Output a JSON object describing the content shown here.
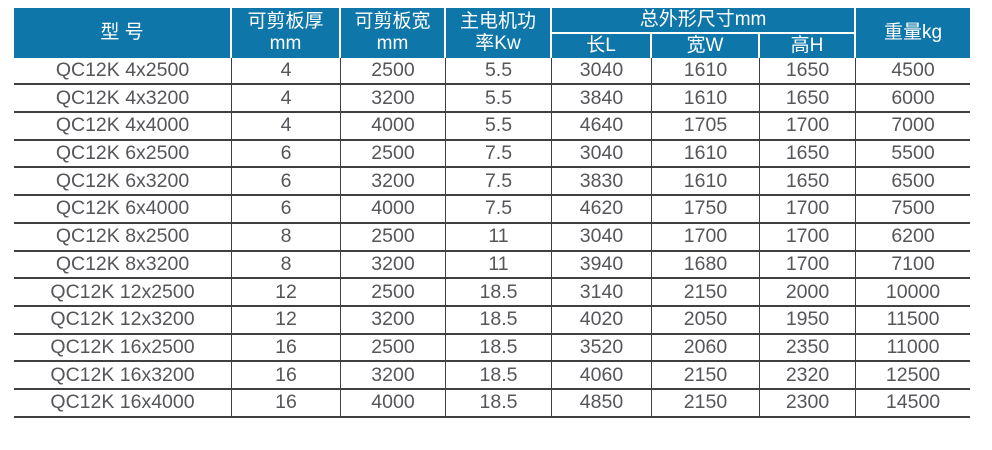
{
  "table": {
    "title_semantic": "QC12K shearing machine specification table",
    "header": {
      "model": "型 号",
      "thickness_l1": "可剪板厚",
      "thickness_l2": "mm",
      "shear_width_l1": "可剪板宽",
      "shear_width_l2": "mm",
      "power_l1": "主电机功",
      "power_l2": "率Kw",
      "dimensions_group": "总外形尺寸mm",
      "length": "长L",
      "width": "宽W",
      "height": "高H",
      "weight": "重量kg"
    },
    "rows": [
      [
        "QC12K 4x2500",
        "4",
        "2500",
        "5.5",
        "3040",
        "1610",
        "1650",
        "4500"
      ],
      [
        "QC12K 4x3200",
        "4",
        "3200",
        "5.5",
        "3840",
        "1610",
        "1650",
        "6000"
      ],
      [
        "QC12K 4x4000",
        "4",
        "4000",
        "5.5",
        "4640",
        "1705",
        "1700",
        "7000"
      ],
      [
        "QC12K 6x2500",
        "6",
        "2500",
        "7.5",
        "3040",
        "1610",
        "1650",
        "5500"
      ],
      [
        "QC12K 6x3200",
        "6",
        "3200",
        "7.5",
        "3830",
        "1610",
        "1650",
        "6500"
      ],
      [
        "QC12K 6x4000",
        "6",
        "4000",
        "7.5",
        "4620",
        "1750",
        "1700",
        "7500"
      ],
      [
        "QC12K 8x2500",
        "8",
        "2500",
        "11",
        "3040",
        "1700",
        "1700",
        "6200"
      ],
      [
        "QC12K 8x3200",
        "8",
        "3200",
        "11",
        "3940",
        "1680",
        "1700",
        "7100"
      ],
      [
        "QC12K 12x2500",
        "12",
        "2500",
        "18.5",
        "3140",
        "2150",
        "2000",
        "10000"
      ],
      [
        "QC12K 12x3200",
        "12",
        "3200",
        "18.5",
        "4020",
        "2050",
        "1950",
        "11500"
      ],
      [
        "QC12K 16x2500",
        "16",
        "2500",
        "18.5",
        "3520",
        "2060",
        "2350",
        "11000"
      ],
      [
        "QC12K 16x3200",
        "16",
        "3200",
        "18.5",
        "4060",
        "2150",
        "2320",
        "12500"
      ],
      [
        "QC12K 16x4000",
        "16",
        "4000",
        "18.5",
        "4850",
        "2150",
        "2300",
        "14500"
      ]
    ]
  },
  "colors": {
    "header_bg": "#0e76a8",
    "header_text": "#ffffff",
    "body_text": "#55565a",
    "grid_line": "#404040"
  }
}
